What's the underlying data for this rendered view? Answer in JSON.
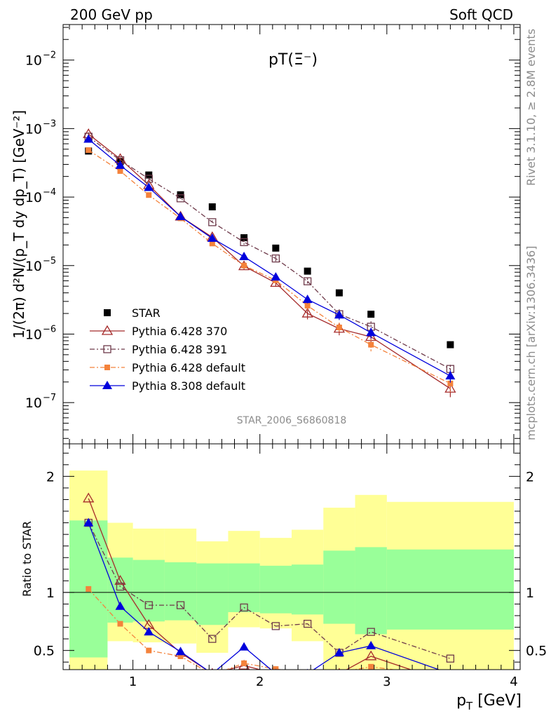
{
  "header": {
    "left": "200 GeV pp",
    "right": "Soft QCD"
  },
  "side_text": {
    "rivet": "Rivet 3.1.10, ≥ 2.8M events",
    "mcplots": "mcplots.cern.ch [arXiv:1306.3436]"
  },
  "analysis_id": "STAR_2006_S6860818",
  "chart_data": [
    {
      "type": "scatter",
      "panel": "main",
      "title": "pT(Ξ⁻)",
      "xlabel": "p_T [GeV]",
      "ylabel": "1/(2π) d²N/(p_T dy dp_T) [GeV⁻²]",
      "yscale": "log",
      "xlim": [
        0.45,
        4.05
      ],
      "ylim": [
        2.5e-08,
        0.033
      ],
      "x_tick_labels": [
        "1",
        "2",
        "3",
        "4"
      ],
      "y_tick_labels": [
        "10^-7",
        "10^-6",
        "10^-5",
        "10^-4",
        "10^-3",
        "10^-2"
      ],
      "legend_position": "lower-left",
      "x": [
        0.65,
        0.9,
        1.125,
        1.375,
        1.625,
        1.875,
        2.125,
        2.375,
        2.625,
        2.875,
        3.5
      ],
      "series": [
        {
          "name": "STAR",
          "color": "#000000",
          "marker": "square-filled",
          "line": "none",
          "values": [
            0.00047,
            0.00033,
            0.00021,
            0.000108,
            7.2e-05,
            2.55e-05,
            1.8e-05,
            8.3e-06,
            4e-06,
            1.95e-06,
            7e-07
          ]
        },
        {
          "name": "Pythia 6.428 370",
          "color": "#a52a2a",
          "marker": "triangle-open",
          "line": "solid",
          "values": [
            0.00083,
            0.00036,
            0.00015,
            5.2e-05,
            2.6e-05,
            9.8e-06,
            5.6e-06,
            2e-06,
            1.2e-06,
            9.1e-07,
            1.6e-07
          ],
          "err": [
            0.06,
            0.05,
            0.05,
            0.06,
            0.08,
            0.1,
            0.12,
            0.18,
            0.2,
            0.18,
            0.25
          ]
        },
        {
          "name": "Pythia 6.428 391",
          "color": "#6e3a4a",
          "marker": "square-open",
          "line": "dashdot",
          "values": [
            0.00076,
            0.000345,
            0.000185,
            9.6e-05,
            4.3e-05,
            2.2e-05,
            1.27e-05,
            5.9e-06,
            1.95e-06,
            1.28e-06,
            3.1e-07
          ],
          "err": [
            0.05,
            0.04,
            0.04,
            0.05,
            0.06,
            0.08,
            0.1,
            0.12,
            0.18,
            0.2,
            0.15
          ]
        },
        {
          "name": "Pythia 6.428 default",
          "color": "#f4823b",
          "marker": "square-filled-small",
          "line": "dashdot",
          "values": [
            0.000485,
            0.00024,
            0.000107,
            4.9e-05,
            2.1e-05,
            1e-05,
            6.1e-06,
            2.6e-06,
            1.25e-06,
            7e-07,
            1.9e-07
          ],
          "err": [
            0.03,
            0.03,
            0.04,
            0.05,
            0.06,
            0.08,
            0.1,
            0.14,
            0.18,
            0.22,
            0.25
          ]
        },
        {
          "name": "Pythia 8.308 default",
          "color": "#0000dc",
          "marker": "triangle-filled",
          "line": "solid",
          "values": [
            0.0007,
            0.00029,
            0.000138,
            5.2e-05,
            2.5e-05,
            1.35e-05,
            6.8e-06,
            3.2e-06,
            1.9e-06,
            1.05e-06,
            2.45e-07
          ],
          "err": [
            0.03,
            0.03,
            0.04,
            0.05,
            0.06,
            0.07,
            0.09,
            0.12,
            0.15,
            0.18,
            0.2
          ]
        }
      ]
    },
    {
      "type": "line",
      "panel": "ratio",
      "ylabel": "Ratio to STAR",
      "ylim": [
        0.335,
        2.28
      ],
      "y_tick_labels": [
        "0.5",
        "1",
        "2"
      ],
      "reference_line": 1,
      "x": [
        0.65,
        0.9,
        1.125,
        1.375,
        1.625,
        1.875,
        2.125,
        2.375,
        2.625,
        2.875,
        3.5
      ],
      "bands": [
        {
          "x_edges": [
            0.5,
            0.8,
            1.0,
            1.25,
            1.5,
            1.75,
            2.0,
            2.25,
            2.5,
            2.75,
            3.0,
            4.0
          ],
          "green": [
            [
              0.44,
              1.62
            ],
            [
              0.74,
              1.3
            ],
            [
              0.75,
              1.28
            ],
            [
              0.76,
              1.26
            ],
            [
              0.72,
              1.25
            ],
            [
              0.83,
              1.25
            ],
            [
              0.82,
              1.23
            ],
            [
              0.81,
              1.24
            ],
            [
              0.73,
              1.36
            ],
            [
              0.64,
              1.39
            ],
            [
              0.68,
              1.37
            ]
          ],
          "yellow": [
            [
              0.3,
              2.05
            ],
            [
              0.58,
              1.6
            ],
            [
              0.57,
              1.55
            ],
            [
              0.56,
              1.55
            ],
            [
              0.48,
              1.44
            ],
            [
              0.7,
              1.53
            ],
            [
              0.69,
              1.47
            ],
            [
              0.58,
              1.54
            ],
            [
              0.28,
              1.73
            ],
            [
              0.3,
              1.84
            ],
            [
              0.25,
              1.78
            ]
          ]
        }
      ],
      "series": [
        {
          "name": "Pythia 6.428 370",
          "color": "#a52a2a",
          "marker": "triangle-open",
          "line": "solid",
          "values": [
            1.81,
            1.1,
            0.72,
            0.48,
            0.3,
            0.37,
            0.3,
            0.24,
            0.3,
            0.45,
            0.22
          ]
        },
        {
          "name": "Pythia 6.428 391",
          "color": "#6e3a4a",
          "marker": "square-open",
          "line": "dashdot",
          "values": [
            1.6,
            1.05,
            0.89,
            0.89,
            0.6,
            0.87,
            0.71,
            0.73,
            0.48,
            0.66,
            0.43
          ]
        },
        {
          "name": "Pythia 6.428 default",
          "color": "#f4823b",
          "marker": "square-filled-small",
          "line": "dashdot",
          "values": [
            1.03,
            0.73,
            0.5,
            0.45,
            0.29,
            0.39,
            0.34,
            0.31,
            0.31,
            0.36,
            0.27
          ]
        },
        {
          "name": "Pythia 8.308 default",
          "color": "#0000dc",
          "marker": "triangle-filled",
          "line": "solid",
          "values": [
            1.6,
            0.88,
            0.66,
            0.49,
            0.3,
            0.53,
            0.3,
            0.3,
            0.48,
            0.54,
            0.3
          ]
        }
      ]
    }
  ]
}
